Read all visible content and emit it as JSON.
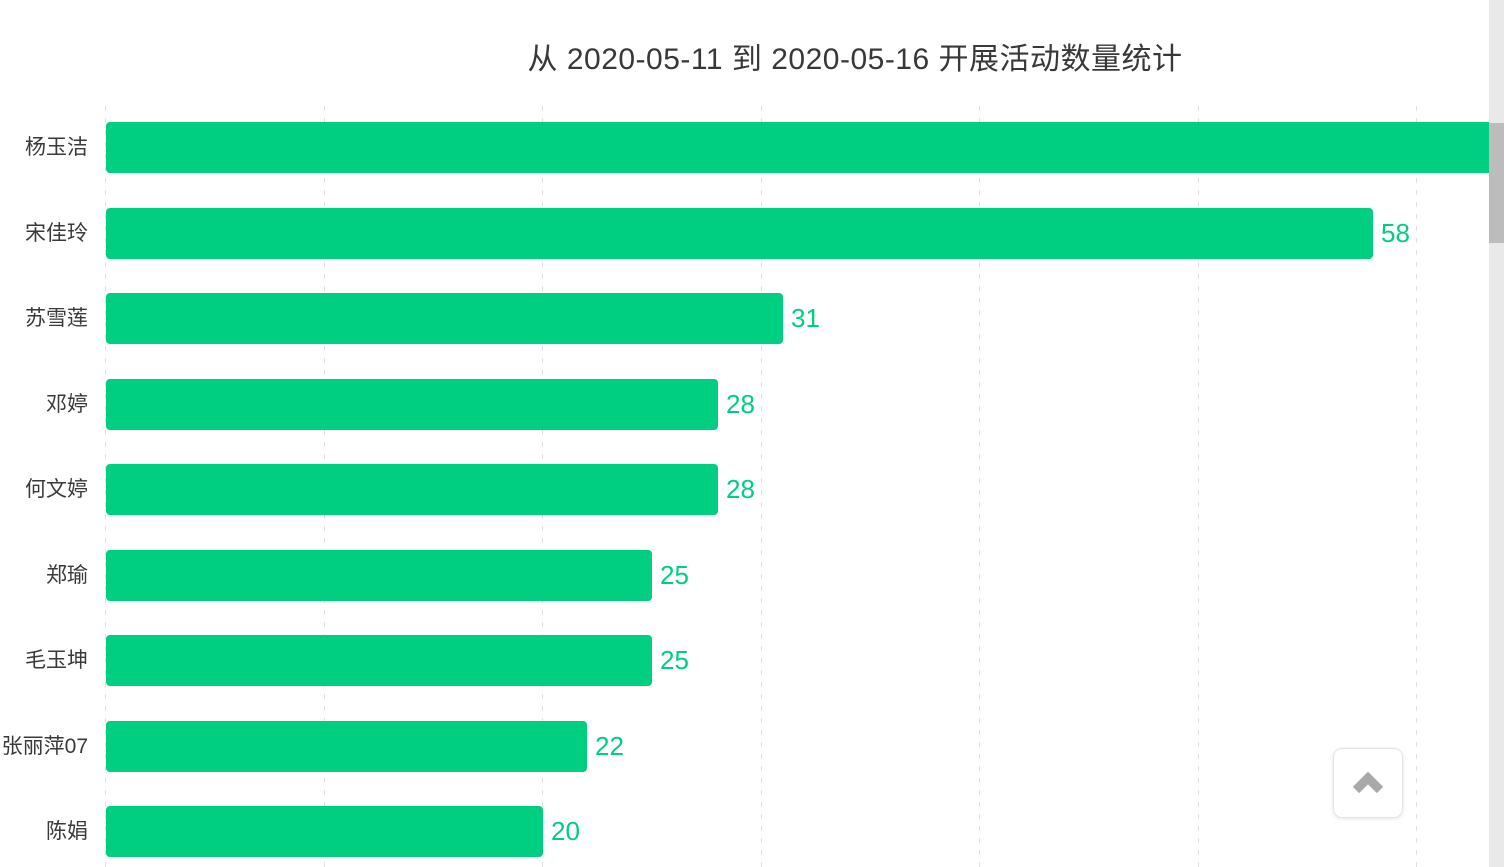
{
  "page": {
    "background": "#ffffff"
  },
  "chart_data": {
    "type": "bar",
    "orientation": "horizontal",
    "title": "从 2020-05-11 到 2020-05-16 开展活动数量统计",
    "categories": [
      "杨玉洁",
      "宋佳玲",
      "苏雪莲",
      "邓婷",
      "何文婷",
      "郑瑜",
      "毛玉坤",
      "张丽萍07",
      "陈娟"
    ],
    "values": [
      null,
      58,
      31,
      28,
      28,
      25,
      25,
      22,
      20
    ],
    "value_labels": [
      "",
      "58",
      "31",
      "28",
      "28",
      "25",
      "25",
      "22",
      "20"
    ],
    "bar_clipped_at_right_edge": [
      true,
      false,
      false,
      false,
      false,
      false,
      false,
      false,
      false
    ],
    "xlabel": "",
    "ylabel": "",
    "xlim": [
      0,
      60
    ],
    "tick_interval": 10,
    "grid": "vertical-dashed",
    "legend": "none",
    "bar_color": "#00ce81",
    "value_label_color": "#00ce81",
    "axis_label_color": "#3a3a3a",
    "gridline_color": "#e0e0e0"
  },
  "scrollbar": {
    "orientation": "vertical",
    "position": "near-top"
  },
  "back_to_top": {
    "icon": "chevron-up-icon",
    "icon_color": "#a9a9a9"
  }
}
